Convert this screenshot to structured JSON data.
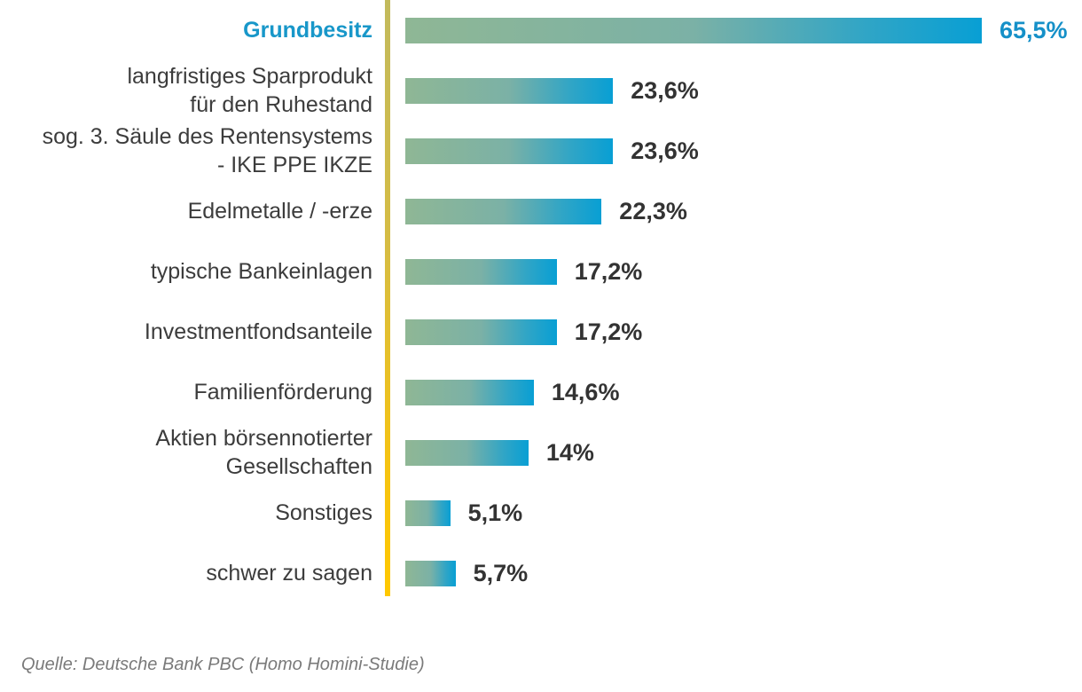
{
  "chart_data": {
    "type": "bar",
    "orientation": "horizontal",
    "title": "",
    "xlabel": "",
    "ylabel": "",
    "xlim": [
      0,
      66
    ],
    "grid": false,
    "legend": false,
    "categories": [
      "Grundbesitz",
      "langfristiges Sparprodukt für den Ruhestand",
      "sog. 3. Säule des Rentensystems - IKE PPE IKZE",
      "Edelmetalle / -erze",
      "typische Bankeinlagen",
      "Investmentfondsanteile",
      "Familienförderung",
      "Aktien börsennotierter Gesellschaften",
      "Sonstiges",
      "schwer zu sagen"
    ],
    "values": [
      65.5,
      23.6,
      23.6,
      22.3,
      17.2,
      17.2,
      14.6,
      14.0,
      5.1,
      5.7
    ],
    "value_labels": [
      "65,5%",
      "23,6%",
      "23,6%",
      "22,3%",
      "17,2%",
      "17,2%",
      "14,6%",
      "14%",
      "5,1%",
      "5,7%"
    ],
    "bar_gradient": [
      "#8fb795",
      "#089fd4"
    ],
    "axis_line_gradient": [
      "#c2ba5c",
      "#ffc800"
    ],
    "highlight_color": "#1897c9"
  },
  "rows": [
    {
      "label_lines": [
        "Grundbesitz"
      ],
      "value": 65.5,
      "value_label": "65,5%",
      "highlight": true
    },
    {
      "label_lines": [
        "langfristiges Sparprodukt",
        "für den Ruhestand"
      ],
      "value": 23.6,
      "value_label": "23,6%",
      "highlight": false
    },
    {
      "label_lines": [
        "sog. 3. Säule des Rentensystems",
        "- IKE PPE IKZE"
      ],
      "value": 23.6,
      "value_label": "23,6%",
      "highlight": false
    },
    {
      "label_lines": [
        "Edelmetalle / -erze"
      ],
      "value": 22.3,
      "value_label": "22,3%",
      "highlight": false
    },
    {
      "label_lines": [
        "typische Bankeinlagen"
      ],
      "value": 17.2,
      "value_label": "17,2%",
      "highlight": false
    },
    {
      "label_lines": [
        "Investmentfondsanteile"
      ],
      "value": 17.2,
      "value_label": "17,2%",
      "highlight": false
    },
    {
      "label_lines": [
        "Familienförderung"
      ],
      "value": 14.6,
      "value_label": "14,6%",
      "highlight": false
    },
    {
      "label_lines": [
        "Aktien börsennotierter",
        "Gesellschaften"
      ],
      "value": 14.0,
      "value_label": "14%",
      "highlight": false
    },
    {
      "label_lines": [
        "Sonstiges"
      ],
      "value": 5.1,
      "value_label": "5,1%",
      "highlight": false
    },
    {
      "label_lines": [
        "schwer zu sagen"
      ],
      "value": 5.7,
      "value_label": "5,7%",
      "highlight": false
    }
  ],
  "source": "Quelle: Deutsche Bank PBC (Homo Homini-Studie)"
}
